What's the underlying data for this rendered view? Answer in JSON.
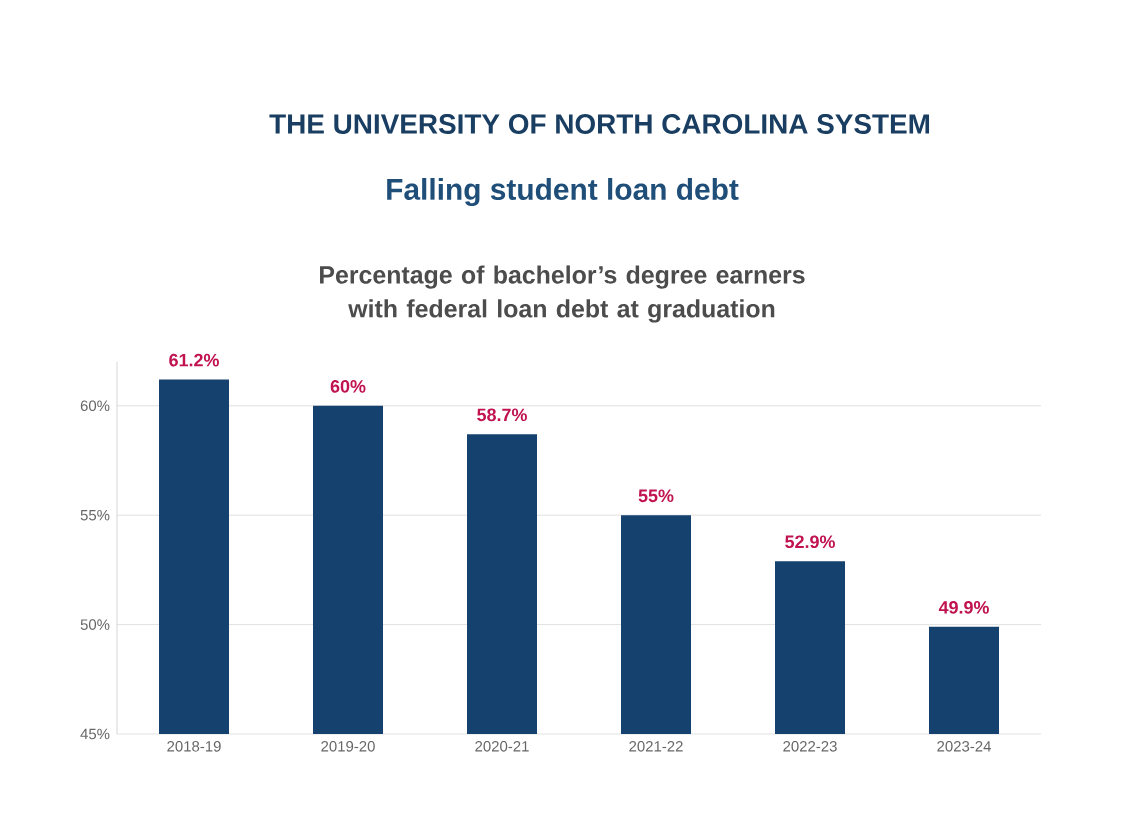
{
  "chart_data": {
    "type": "bar",
    "title": "Falling student loan debt",
    "subtitle": "Percentage of bachelor’s degree earners with federal loan debt at graduation",
    "annotations": [
      "THE UNIVERSITY OF NORTH CAROLINA SYSTEM"
    ],
    "categories": [
      "2018-19",
      "2019-20",
      "2020-21",
      "2021-22",
      "2022-23",
      "2023-24"
    ],
    "values": [
      61.2,
      60,
      58.7,
      55,
      52.9,
      49.9
    ],
    "value_labels": [
      "61.2%",
      "60%",
      "58.7%",
      "55%",
      "52.9%",
      "49.9%"
    ],
    "color": "#15416e",
    "ylim": [
      45,
      62
    ],
    "yticks": [
      {
        "value": 45,
        "label": "45%"
      },
      {
        "value": 50,
        "label": "50%"
      },
      {
        "value": 55,
        "label": "55%"
      },
      {
        "value": 60,
        "label": "60%"
      }
    ],
    "grid": "y"
  }
}
